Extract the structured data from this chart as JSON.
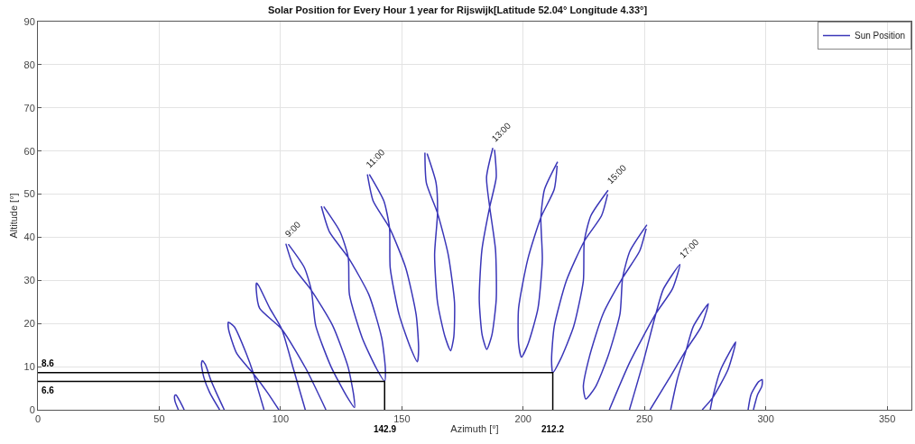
{
  "chart_data": {
    "type": "line",
    "title": "Solar Position for Every Hour 1 year for Rijswijk[Latitude 52.04° Longitude 4.33°]",
    "xlabel": "Azimuth [°]",
    "ylabel": "Altitude [°]",
    "xlim": [
      0,
      360
    ],
    "xticks": [
      0,
      50,
      100,
      150,
      200,
      250,
      300,
      350
    ],
    "ylim": [
      0,
      90
    ],
    "yticks": [
      0,
      10,
      20,
      30,
      40,
      50,
      60,
      70,
      80,
      90
    ],
    "grid": true,
    "legend": "top right",
    "series": [
      {
        "name": "Sun Position",
        "color": "#3a36b8",
        "x": [
          57.9,
          56.5,
          56.4,
          57.0,
          58.3,
          60.3
        ],
        "values": [
          0,
          2.0,
          3.3,
          3.4,
          2.2,
          0
        ]
      },
      {
        "color": "#3a36b8",
        "x": [
          74.9,
          70.8,
          68.4,
          67.4,
          67.8,
          69.0,
          71.2,
          73.5,
          76.8
        ],
        "values": [
          0,
          4.0,
          7.5,
          10.6,
          11.4,
          10.5,
          7.0,
          4.0,
          0
        ]
      },
      {
        "color": "#3a36b8",
        "x": [
          93.2,
          91.0,
          88.9,
          85.9,
          81.0,
          78.5,
          78.6,
          82.0,
          88.9,
          94.6,
          99.3
        ],
        "values": [
          0,
          4.2,
          8.3,
          13.0,
          19.2,
          20.3,
          18.6,
          13.0,
          8.3,
          4.0,
          0
        ]
      },
      {
        "color": "#3a36b8",
        "x": [
          110.2,
          105.3,
          100.5,
          95.6,
          91.0,
          90.1,
          90.0,
          91.4,
          100.5,
          110.5,
          118.7
        ],
        "values": [
          0,
          9.5,
          18.7,
          23.5,
          28.8,
          29.4,
          27.8,
          23.5,
          18.7,
          9.5,
          0
        ]
      },
      {
        "color": "#3a36b8",
        "x": [
          102.2,
          105.5,
          112.7,
          121.5,
          127.8,
          130.2,
          130.5,
          127.2,
          120.8,
          114.5,
          112.7,
          109.8,
          103.2
        ],
        "values": [
          38.5,
          33.0,
          27.7,
          19.5,
          10.0,
          3.2,
          0.5,
          3.2,
          10.0,
          19.5,
          27.7,
          33.0,
          38.4
        ]
      },
      {
        "color": "#3a36b8",
        "x": [
          116.8,
          120.2,
          127.9,
          136.4,
          141.7,
          143.2,
          142.9,
          139.6,
          133.7,
          128.4,
          127.9,
          124.6,
          117.8
        ],
        "values": [
          47.2,
          41.2,
          35.3,
          26.7,
          16.6,
          9.5,
          6.6,
          9.5,
          16.6,
          26.7,
          35.3,
          41.2,
          47.1
        ]
      },
      {
        "color": "#3a36b8",
        "x": [
          135.8,
          138.2,
          144.9,
          151.6,
          155.9,
          156.9,
          156.4,
          153.7,
          148.9,
          145.2,
          144.9,
          142.6,
          136.6
        ],
        "values": [
          54.6,
          48.4,
          42.2,
          32.9,
          22.0,
          14.2,
          11.1,
          14.2,
          22.0,
          32.9,
          42.2,
          48.4,
          54.6
        ]
      },
      {
        "color": "#3a36b8",
        "x": [
          159.5,
          160.1,
          164.7,
          169.1,
          171.7,
          171.4,
          170.1,
          167.8,
          164.7,
          163.5,
          164.7,
          164.1,
          160.4
        ],
        "values": [
          59.6,
          52.6,
          45.6,
          36.0,
          24.9,
          16.9,
          13.7,
          16.9,
          24.9,
          36.0,
          45.6,
          52.6,
          59.4
        ]
      },
      {
        "color": "#3a36b8",
        "x": [
          187.5,
          184.9,
          186.2,
          188.6,
          188.9,
          187.1,
          185.0,
          183.1,
          181.9,
          183.0,
          186.2,
          188.9,
          188.2
        ],
        "values": [
          60.7,
          53.9,
          47.0,
          37.1,
          25.6,
          17.3,
          14.0,
          17.3,
          25.6,
          37.1,
          47.0,
          53.9,
          60.3
        ]
      },
      {
        "color": "#3a36b8",
        "x": [
          214.2,
          208.8,
          207.3,
          207.9,
          206.1,
          202.1,
          199.3,
          198.1,
          198.1,
          201.9,
          207.3,
          212.8,
          214.0
        ],
        "values": [
          57.5,
          51.1,
          44.6,
          34.9,
          23.5,
          15.4,
          12.2,
          15.4,
          23.5,
          34.9,
          44.6,
          51.1,
          56.6
        ]
      },
      {
        "color": "#3a36b8",
        "x": [
          235.0,
          227.9,
          225.2,
          224.8,
          220.8,
          215.3,
          212.2,
          211.7,
          212.8,
          217.8,
          225.2,
          232.3,
          234.8
        ],
        "values": [
          50.9,
          45.0,
          39.1,
          29.9,
          19.3,
          11.6,
          8.6,
          11.6,
          19.3,
          29.9,
          39.1,
          45.0,
          50.0
        ]
      },
      {
        "color": "#3a36b8",
        "x": [
          251.0,
          244.0,
          241.0,
          239.9,
          234.9,
          229.8,
          225.8,
          224.8,
          227.3,
          232.9,
          241.0,
          248.0,
          250.7
        ],
        "values": [
          42.9,
          36.8,
          30.6,
          22.2,
          12.3,
          5.3,
          2.5,
          5.3,
          12.3,
          22.2,
          30.6,
          36.8,
          42.0
        ]
      },
      {
        "color": "#3a36b8",
        "x": [
          235.5,
          244.0,
          254.7,
          261.5,
          264.6,
          257.8,
          254.7,
          249.5,
          243.8
        ],
        "values": [
          0,
          11.1,
          22.3,
          28.0,
          33.7,
          28.0,
          22.3,
          11.1,
          0
        ]
      },
      {
        "color": "#3a36b8",
        "x": [
          252.3,
          259.9,
          267.2,
          273.4,
          276.3,
          270.1,
          267.2,
          263.5,
          260.8
        ],
        "values": [
          0,
          7.0,
          13.9,
          19.3,
          24.6,
          19.3,
          13.9,
          7.0,
          0
        ]
      },
      {
        "color": "#3a36b8",
        "x": [
          273.8,
          278.1,
          284.4,
          287.6,
          281.4,
          278.1,
          277.1
        ],
        "values": [
          0,
          2.8,
          9.3,
          15.7,
          9.3,
          2.8,
          0
        ]
      },
      {
        "color": "#3a36b8",
        "x": [
          292.7,
          293.9,
          297.0,
          298.5,
          298.4,
          296.6,
          294.9
        ],
        "values": [
          0,
          3.5,
          6.5,
          7.0,
          5.5,
          3.5,
          0
        ]
      },
      {
        "color": "#000000",
        "x": [
          0,
          142.9,
          142.9
        ],
        "values": [
          6.6,
          6.6,
          0
        ]
      },
      {
        "color": "#000000",
        "x": [
          0,
          212.2,
          212.2
        ],
        "values": [
          8.6,
          8.6,
          0
        ]
      }
    ],
    "annotations": [
      {
        "text": "9:00",
        "x": 102.2,
        "y": 38.5
      },
      {
        "text": "11:00",
        "x": 135.8,
        "y": 54.6
      },
      {
        "text": "13:00",
        "x": 187.5,
        "y": 60.7
      },
      {
        "text": "15:00",
        "x": 235.0,
        "y": 50.9
      },
      {
        "text": "17:00",
        "x": 264.6,
        "y": 33.7
      },
      {
        "text": "8.6",
        "x": 0,
        "y": 8.6
      },
      {
        "text": "6.6",
        "x": 0,
        "y": 6.6
      },
      {
        "text": "142.9",
        "x": 142.9,
        "y": 0
      },
      {
        "text": "212.2",
        "x": 212.2,
        "y": 0
      }
    ]
  }
}
